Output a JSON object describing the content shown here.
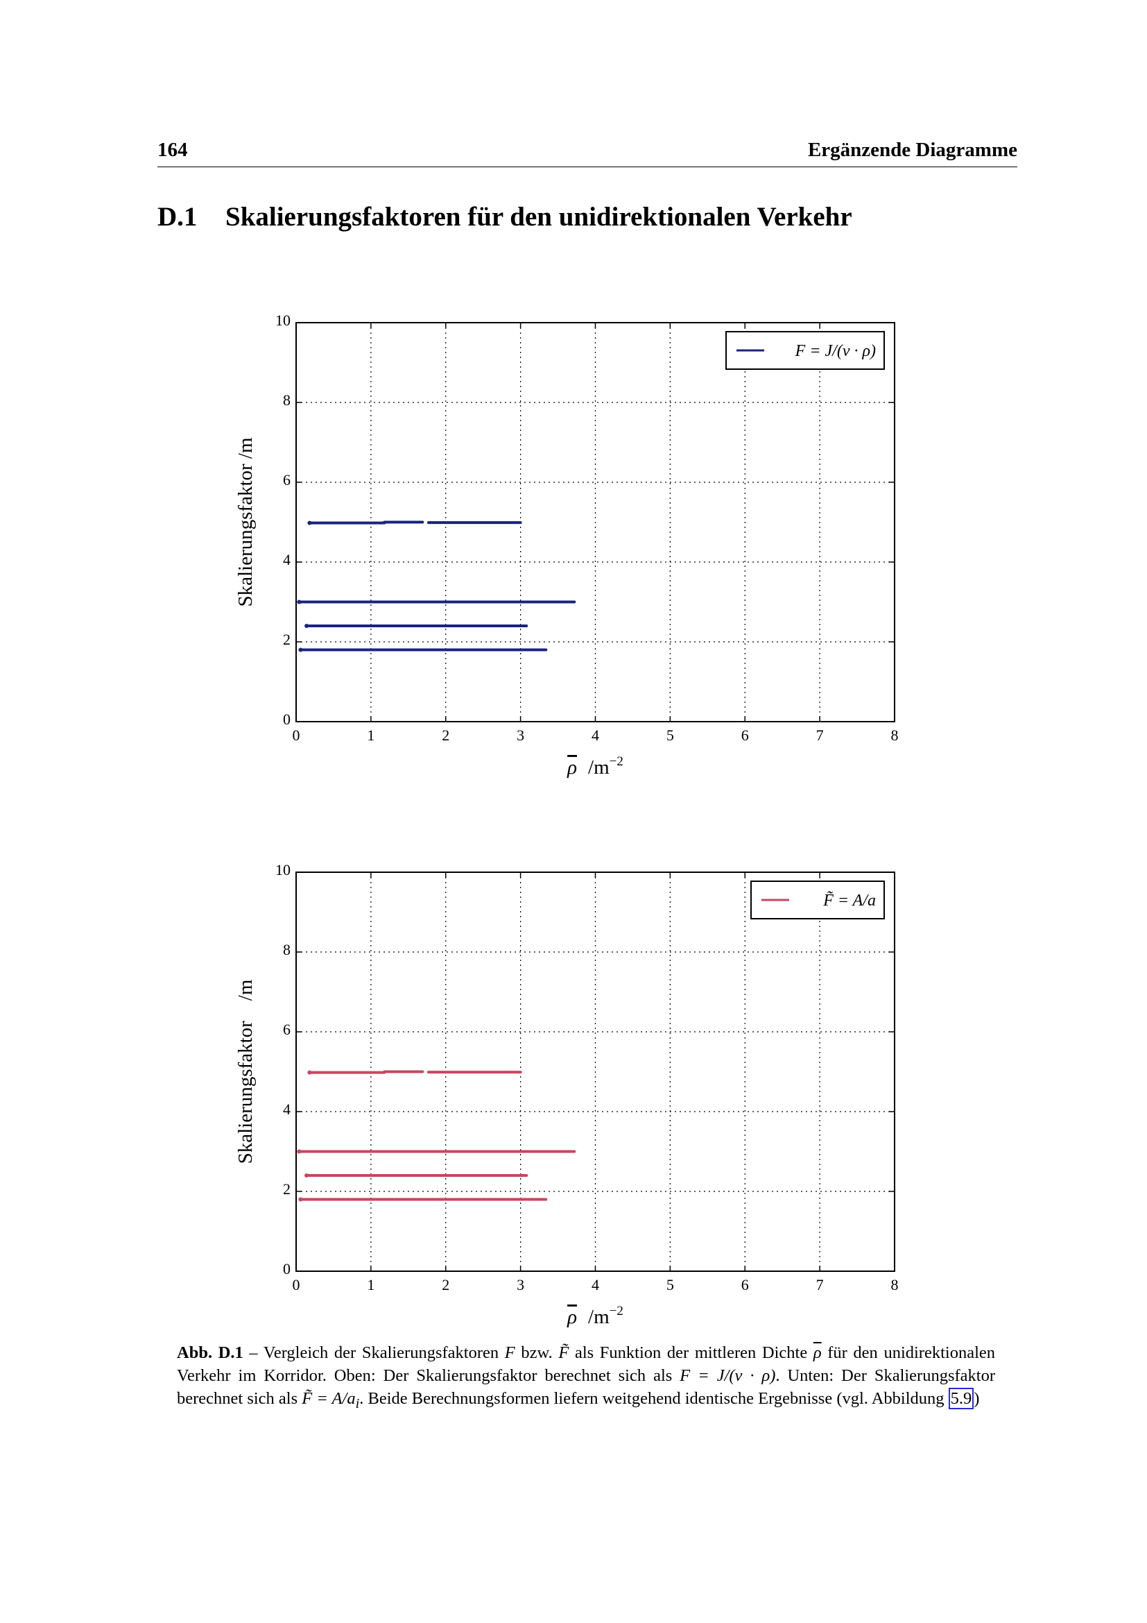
{
  "header": {
    "page_number": "164",
    "running_title": "Ergänzende Diagramme"
  },
  "section": {
    "number": "D.1",
    "title": "Skalierungsfaktoren für den unidirektionalen Verkehr"
  },
  "colors": {
    "top_series": "#1a237e",
    "bottom_series": "#c8465e"
  },
  "chart_data": [
    {
      "type": "line",
      "xlabel_sym": "ρ",
      "xlabel_unit": "/m",
      "xlabel_exp": "−2",
      "ylabel": "Skalierungsfaktor /m",
      "xlim": [
        0,
        8
      ],
      "ylim": [
        0,
        10
      ],
      "xticks": [
        "0",
        "1",
        "2",
        "3",
        "4",
        "5",
        "6",
        "7",
        "8"
      ],
      "yticks": [
        "0",
        "2",
        "4",
        "6",
        "8",
        "10"
      ],
      "grid": true,
      "legend": "top-right",
      "legend_label": "F = J/(v · ρ)",
      "series": [
        {
          "segments": [
            [
              0.18,
              1.18,
              4.98
            ],
            [
              1.18,
              1.69,
              5.0
            ],
            [
              1.77,
              3.0,
              4.99
            ]
          ]
        },
        {
          "segments": [
            [
              0.04,
              3.72,
              3.0
            ]
          ]
        },
        {
          "segments": [
            [
              0.14,
              3.08,
              2.4
            ]
          ]
        },
        {
          "segments": [
            [
              0.06,
              3.34,
              1.8
            ]
          ]
        }
      ]
    },
    {
      "type": "line",
      "xlabel_sym": "ρ",
      "xlabel_unit": "/m",
      "xlabel_exp": "−2",
      "ylabel": "Skalierungsfaktor    /m",
      "xlim": [
        0,
        8
      ],
      "ylim": [
        0,
        10
      ],
      "xticks": [
        "0",
        "1",
        "2",
        "3",
        "4",
        "5",
        "6",
        "7",
        "8"
      ],
      "yticks": [
        "0",
        "2",
        "4",
        "6",
        "8",
        "10"
      ],
      "grid": true,
      "legend": "top-right",
      "legend_label": "F̃ = A/a",
      "series": [
        {
          "segments": [
            [
              0.18,
              1.18,
              4.98
            ],
            [
              1.18,
              1.69,
              5.0
            ],
            [
              1.77,
              3.0,
              4.99
            ]
          ]
        },
        {
          "segments": [
            [
              0.04,
              3.72,
              3.0
            ]
          ]
        },
        {
          "segments": [
            [
              0.14,
              3.08,
              2.4
            ]
          ]
        },
        {
          "segments": [
            [
              0.06,
              3.34,
              1.8
            ]
          ]
        }
      ]
    }
  ],
  "caption": {
    "label": "Abb. D.1",
    "t1": " – Vergleich der Skalierungsfaktoren ",
    "F": "F",
    "t2": " bzw. ",
    "Ft": "F̃",
    "t3": " als Funktion der mittleren Dichte ",
    "rho": "ρ",
    "t4": " für den unidirektionalen Verkehr im Korridor. Oben: Der Skalierungsfaktor berechnet sich als ",
    "f1": "F = J/(v · ρ)",
    "t5": ". Unten: Der Skalierungsfaktor berechnet sich als ",
    "f2": "F̃ = A/a",
    "f2sub": "i",
    "t6": ". Beide Berechnungsformen liefern weitgehend identische Ergebnisse (vgl. Abbildung ",
    "ref": "5.9",
    "t7": ")"
  }
}
